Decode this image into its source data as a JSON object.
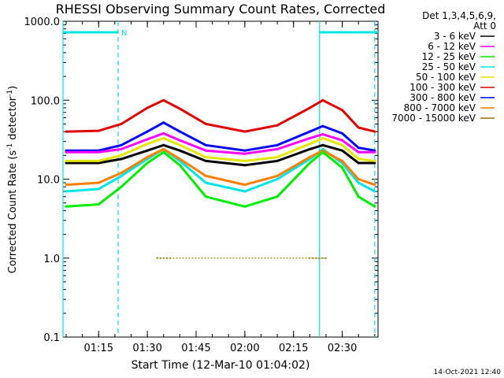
{
  "chart_data": {
    "type": "line",
    "title": "RHESSI Observing Summary Count Rates, Corrected",
    "xlabel": "Start Time (12-Mar-10 01:04:02)",
    "ylabel_main": "Corrected Count Rate (s",
    "ylabel_exp1": "-1",
    "ylabel_mid": " detector",
    "ylabel_exp2": "-1",
    "ylabel_end": ")",
    "y_scale": "log",
    "ylim": [
      0.1,
      1000.0
    ],
    "y_ticks": [
      {
        "value": 1000.0,
        "label": "1000.0"
      },
      {
        "value": 100.0,
        "label": "100.0"
      },
      {
        "value": 10.0,
        "label": "10.0"
      },
      {
        "value": 1.0,
        "label": "1.0"
      },
      {
        "value": 0.1,
        "label": "0.1"
      }
    ],
    "x_range_minutes": [
      "01:04:02",
      "02:41:00"
    ],
    "x_ticks": [
      {
        "time": "01:15",
        "label": "01:15"
      },
      {
        "time": "01:30",
        "label": "01:30"
      },
      {
        "time": "01:45",
        "label": "01:45"
      },
      {
        "time": "02:00",
        "label": "02:00"
      },
      {
        "time": "02:15",
        "label": "02:15"
      },
      {
        "time": "02:30",
        "label": "02:30"
      }
    ],
    "legend": {
      "placement": "right",
      "header_line1": "Det 1,3,4,5,6,9,",
      "header_line2": "Att 0",
      "entries": [
        {
          "label": "3 - 6 keV",
          "color": "#000000"
        },
        {
          "label": "6 - 12 keV",
          "color": "#ff00ff"
        },
        {
          "label": "12 - 25 keV",
          "color": "#00ee00"
        },
        {
          "label": "25 - 50 keV",
          "color": "#00e5e5"
        },
        {
          "label": "50 - 100 keV",
          "color": "#e5e500"
        },
        {
          "label": "100 - 300 keV",
          "color": "#e00000"
        },
        {
          "label": "300 - 800 keV",
          "color": "#0000ff"
        },
        {
          "label": "800 - 7000 keV",
          "color": "#ff7f00"
        },
        {
          "label": "7000 - 15000 keV",
          "color": "#8b7500"
        }
      ]
    },
    "annotations": {
      "night_marker_label": "N",
      "night_intervals": [
        [
          "01:04:02",
          "01:21:00"
        ],
        [
          "02:23:00",
          "02:41:00"
        ]
      ],
      "saa_lines_dashed": [
        "01:21:00",
        "02:40:00"
      ],
      "solid_lines": [
        "01:04:02",
        "02:23:00"
      ]
    },
    "series": [
      {
        "name": "3 - 6 keV",
        "color": "#000000",
        "x": [
          "01:05",
          "01:15",
          "01:22",
          "01:30",
          "01:35",
          "01:40",
          "01:48",
          "02:00",
          "02:10",
          "02:20",
          "02:24",
          "02:30",
          "02:35",
          "02:40"
        ],
        "y": [
          16,
          16,
          18,
          23,
          27,
          23,
          17,
          15,
          17,
          24,
          27,
          23,
          16,
          16
        ]
      },
      {
        "name": "6 - 12 keV",
        "color": "#ff00ff",
        "x": [
          "01:05",
          "01:15",
          "01:22",
          "01:30",
          "01:35",
          "01:40",
          "01:48",
          "02:00",
          "02:10",
          "02:20",
          "02:24",
          "02:30",
          "02:35",
          "02:40"
        ],
        "y": [
          22,
          22,
          24,
          32,
          38,
          31,
          23,
          21,
          24,
          33,
          37,
          31,
          22,
          22
        ]
      },
      {
        "name": "12 - 25 keV",
        "color": "#00ee00",
        "x": [
          "01:05",
          "01:15",
          "01:22",
          "01:30",
          "01:35",
          "01:40",
          "01:48",
          "02:00",
          "02:10",
          "02:20",
          "02:24",
          "02:30",
          "02:35",
          "02:40"
        ],
        "y": [
          4.5,
          4.8,
          8,
          16,
          22,
          15,
          6,
          4.5,
          6,
          16,
          22,
          14,
          6,
          4.5
        ]
      },
      {
        "name": "25 - 50 keV",
        "color": "#00e5e5",
        "x": [
          "01:05",
          "01:15",
          "01:22",
          "01:30",
          "01:35",
          "01:40",
          "01:48",
          "02:00",
          "02:10",
          "02:20",
          "02:24",
          "02:30",
          "02:35",
          "02:40"
        ],
        "y": [
          7,
          7.5,
          11,
          18,
          24,
          17,
          9,
          7,
          10,
          18,
          24,
          16,
          9,
          7
        ]
      },
      {
        "name": "50 - 100 keV",
        "color": "#e5e500",
        "x": [
          "01:05",
          "01:15",
          "01:22",
          "01:30",
          "01:35",
          "01:40",
          "01:48",
          "02:00",
          "02:10",
          "02:20",
          "02:24",
          "02:30",
          "02:35",
          "02:40"
        ],
        "y": [
          17,
          17,
          20,
          28,
          33,
          27,
          19,
          17,
          19,
          28,
          33,
          27,
          18,
          17
        ]
      },
      {
        "name": "100 - 300 keV",
        "color": "#e00000",
        "x": [
          "01:05",
          "01:15",
          "01:22",
          "01:30",
          "01:35",
          "01:40",
          "01:48",
          "02:00",
          "02:10",
          "02:20",
          "02:24",
          "02:30",
          "02:35",
          "02:40"
        ],
        "y": [
          40,
          41,
          50,
          80,
          100,
          78,
          50,
          40,
          48,
          80,
          100,
          75,
          45,
          40
        ]
      },
      {
        "name": "300 - 800 keV",
        "color": "#0000ff",
        "x": [
          "01:05",
          "01:15",
          "01:22",
          "01:30",
          "01:35",
          "01:40",
          "01:48",
          "02:00",
          "02:10",
          "02:20",
          "02:24",
          "02:30",
          "02:35",
          "02:40"
        ],
        "y": [
          23,
          23,
          27,
          40,
          52,
          40,
          27,
          23,
          27,
          40,
          47,
          38,
          25,
          23
        ]
      },
      {
        "name": "800 - 7000 keV",
        "color": "#ff7f00",
        "x": [
          "01:05",
          "01:15",
          "01:22",
          "01:30",
          "01:35",
          "01:40",
          "01:48",
          "02:00",
          "02:10",
          "02:20",
          "02:24",
          "02:30",
          "02:35",
          "02:40"
        ],
        "y": [
          8.5,
          9,
          12,
          19,
          24,
          18,
          11,
          8.5,
          11,
          19,
          23,
          17,
          10,
          8.5
        ]
      },
      {
        "name": "7000 - 15000 keV",
        "color": "#8b7500",
        "x": [
          "01:33",
          "01:34",
          "01:35",
          "01:36",
          "01:37",
          "02:20",
          "02:21",
          "02:22",
          "02:23",
          "02:24",
          "02:25"
        ],
        "y": [
          1.0,
          1.0,
          1.0,
          1.0,
          1.0,
          1.0,
          1.0,
          1.0,
          1.0,
          1.0,
          1.0
        ]
      }
    ],
    "footer_timestamp": "14-Oct-2021 12:40"
  }
}
